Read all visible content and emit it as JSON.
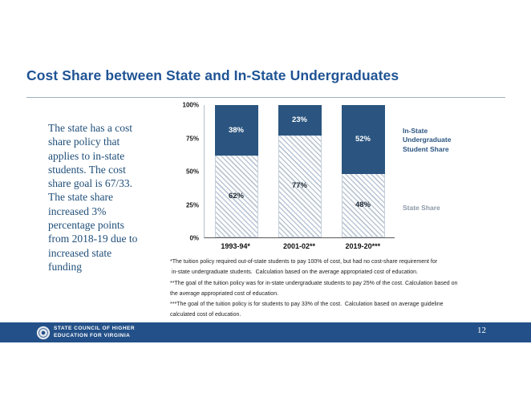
{
  "slide": {
    "title": "Cost Share between State and In-State Undergraduates",
    "body_text": "The state has a cost\nshare policy that\napplies to in-state\nstudents. The cost\nshare goal is 67/33.\nThe state share\nincreased 3%\npercentage points\nfrom 2018-19 due to\nincreased state\nfunding",
    "page_number": "12"
  },
  "chart_data": {
    "type": "bar",
    "stacked": true,
    "title": "",
    "categories": [
      "1993-94*",
      "2001-02**",
      "2019-20***"
    ],
    "series": [
      {
        "name": "State Share",
        "values": [
          62,
          77,
          48
        ],
        "fill": "hatched",
        "hatch_color": "#b9c6d3",
        "label_color": "#1c2733"
      },
      {
        "name": "In-State Undergraduate Student Share",
        "values": [
          38,
          23,
          52
        ],
        "fill": "solid",
        "color": "#2b5580",
        "label_color": "#ffffff"
      }
    ],
    "y_ticks": [
      "100%",
      "75%",
      "50%",
      "25%",
      "0%"
    ],
    "ylim": [
      0,
      100
    ],
    "grid": false,
    "legend_position": "right",
    "legend": [
      {
        "label": "In-State\nUndergraduate\nStudent Share",
        "color": "#2b5580"
      },
      {
        "label": "State Share",
        "color": "#8d99a8"
      }
    ]
  },
  "footnotes": [
    "*The tuition policy required out-of-state students to pay 100% of cost, but had no cost-share requirement for",
    " in-state undergraduate students.  Calculation based on the average appropriated cost of education.",
    "**The goal of the tuition policy was for in-state undergraduate students to pay 25% of the cost. Calculation based on",
    "the average appropriated cost of education.",
    "***The goal of the tuition policy is for students to pay 33% of the cost.  Calculation based on average guideline",
    "calculated cost of education."
  ],
  "footer": {
    "org_line1": "STATE COUNCIL OF HIGHER",
    "org_line2": "EDUCATION FOR VIRGINIA",
    "logo": "schev-seal-icon"
  },
  "colors": {
    "title_blue": "#1f5394",
    "body_text_blue": "#1f4e79",
    "bar_blue": "#2b5580",
    "hatch_line": "#b9c6d3",
    "state_share_gray": "#8d99a8",
    "footer_blue": "#235088"
  }
}
